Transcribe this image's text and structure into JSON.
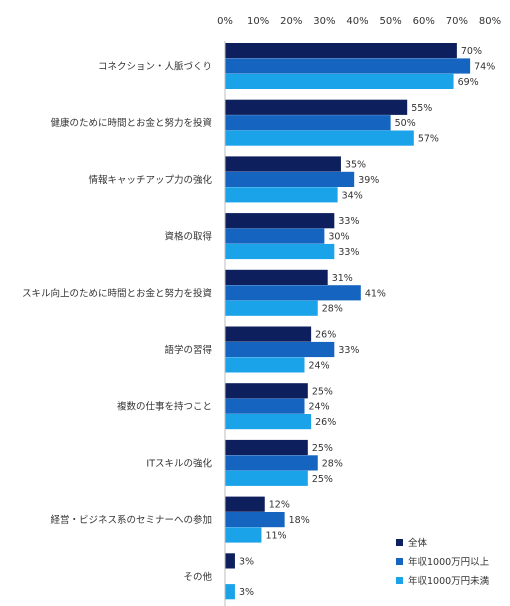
{
  "chart_data": {
    "type": "bar",
    "orientation": "horizontal",
    "xlim": [
      0,
      80
    ],
    "ticks": [
      "0%",
      "10%",
      "20%",
      "30%",
      "40%",
      "50%",
      "60%",
      "70%",
      "80%"
    ],
    "tick_values": [
      0,
      10,
      20,
      30,
      40,
      50,
      60,
      70,
      80
    ],
    "value_suffix": "%",
    "grid": false,
    "legend_position": "bottom-right",
    "categories": [
      "コネクション・人脈づくり",
      "健康のために時間とお金と努力を投資",
      "情報キャッチアップ力の強化",
      "資格の取得",
      "スキル向上のために時間とお金と努力を投資",
      "語学の習得",
      "複数の仕事を持つこと",
      "ITスキルの強化",
      "経営・ビジネス系のセミナーへの参加",
      "その他"
    ],
    "series": [
      {
        "name": "全体",
        "color": "#0d1f5c",
        "values": [
          70,
          55,
          35,
          33,
          31,
          26,
          25,
          25,
          12,
          3
        ]
      },
      {
        "name": "年収1000万円以上",
        "color": "#1565c0",
        "values": [
          74,
          50,
          39,
          30,
          41,
          33,
          24,
          28,
          18,
          0
        ]
      },
      {
        "name": "年収1000万円未満",
        "color": "#1aa3e8",
        "values": [
          69,
          57,
          34,
          33,
          28,
          24,
          26,
          25,
          11,
          3
        ]
      }
    ],
    "data_labels": [
      [
        "70%",
        "74%",
        "69%"
      ],
      [
        "55%",
        "50%",
        "57%"
      ],
      [
        "35%",
        "39%",
        "34%"
      ],
      [
        "33%",
        "30%",
        "33%"
      ],
      [
        "31%",
        "41%",
        "28%"
      ],
      [
        "26%",
        "33%",
        "24%"
      ],
      [
        "25%",
        "24%",
        "26%"
      ],
      [
        "25%",
        "28%",
        "25%"
      ],
      [
        "12%",
        "18%",
        "11%"
      ],
      [
        "3%",
        "",
        "3%"
      ]
    ]
  }
}
